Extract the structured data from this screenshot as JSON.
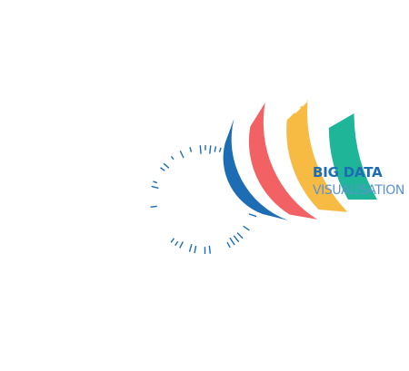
{
  "caption": {
    "title": "BIG DATA",
    "subtitle": "VISUALISATION"
  },
  "colors": {
    "background": "#ffffff",
    "teal": "#1fb598",
    "yellow": "#f7bb44",
    "red": "#f26264",
    "blue": "#1c6db4",
    "cell_light": "#ffffff",
    "title_text": "#1c6db4",
    "subtitle_text": "#5a94cb"
  },
  "rings": [
    {
      "name": "teal",
      "color_key": "teal"
    },
    {
      "name": "yellow",
      "color_key": "yellow"
    },
    {
      "name": "red",
      "color_key": "red"
    },
    {
      "name": "blue",
      "color_key": "blue"
    }
  ]
}
